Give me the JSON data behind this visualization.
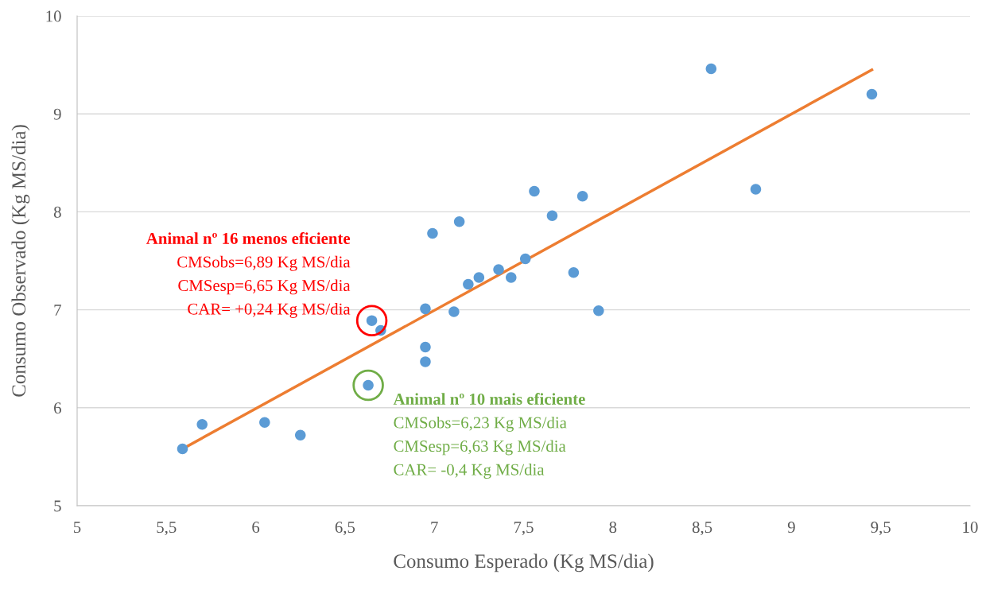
{
  "chart_data": {
    "type": "scatter",
    "xlabel": "Consumo Esperado (Kg MS/dia)",
    "ylabel": "Consumo Observado (Kg MS/dia)",
    "xlim": [
      5,
      10
    ],
    "xticks": [
      5,
      {
        "value": 5.5,
        "label": "5,5"
      },
      6,
      {
        "value": 6.5,
        "label": "6,5"
      },
      7,
      {
        "value": 7.5,
        "label": "7,5"
      },
      8,
      {
        "value": 8.5,
        "label": "8,5"
      },
      9,
      {
        "value": 9.5,
        "label": "9,5"
      },
      10
    ],
    "ylim": [
      5,
      10
    ],
    "yticks": [
      5,
      6,
      7,
      8,
      9,
      10
    ],
    "grid": "y",
    "legend": false,
    "marker": "circle",
    "series": [
      {
        "color": "#5b9bd5",
        "x": [
          5.59,
          5.7,
          6.05,
          6.25,
          6.63,
          6.65,
          6.7,
          6.95,
          6.95,
          6.95,
          6.99,
          7.11,
          7.14,
          7.19,
          7.25,
          7.36,
          7.43,
          7.51,
          7.56,
          7.66,
          7.78,
          7.83,
          7.92,
          8.55,
          8.8,
          9.45
        ],
        "values": [
          5.58,
          5.83,
          5.85,
          5.72,
          6.23,
          6.89,
          6.79,
          6.47,
          6.62,
          7.01,
          7.78,
          6.98,
          7.9,
          7.26,
          7.33,
          7.41,
          7.33,
          7.52,
          8.21,
          7.96,
          7.38,
          8.16,
          6.99,
          9.46,
          8.23,
          9.2
        ]
      },
      {
        "type": "line",
        "marker": "none",
        "color": "#ed7d31",
        "x": [
          5.59,
          9.45
        ],
        "values": [
          5.58,
          9.45
        ]
      }
    ],
    "annotations": [
      {
        "text": "Animal nº 16 menos eficiente\nCMSobs=6,89 Kg MS/dia\nCMSesp=6,65 Kg MS/dia\nCAR= +0,24 Kg MS/dia",
        "x": 6.65,
        "y": 6.89
      },
      {
        "text": "Animal nº 10 mais eficiente\nCMSobs=6,23 Kg MS/dia\nCMSesp=6,63 Kg MS/dia\nCAR= -0,4 Kg MS/dia",
        "x": 6.63,
        "y": 6.23
      }
    ]
  }
}
